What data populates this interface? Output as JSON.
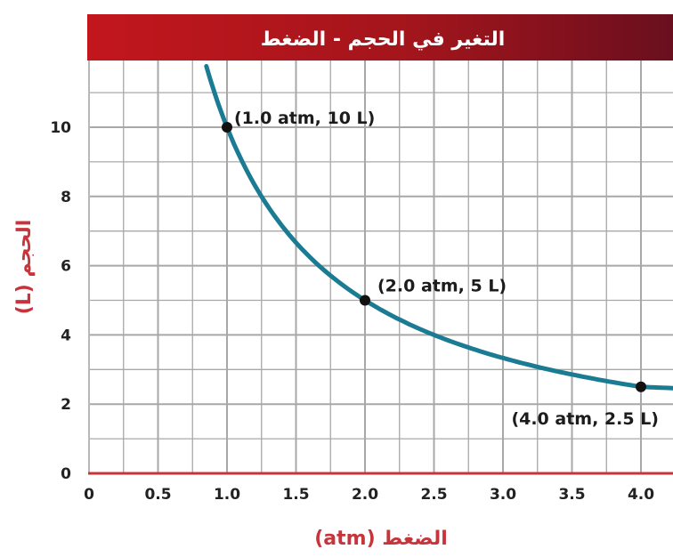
{
  "chart_data": {
    "type": "line",
    "title": "التغير في الحجم - الضغط",
    "xlabel": "الضغط (atm)",
    "ylabel": "الحجم (L)",
    "xlim": [
      0,
      4.3
    ],
    "ylim": [
      0,
      11.8
    ],
    "x_ticks": [
      0,
      0.5,
      1.0,
      1.5,
      2.0,
      2.5,
      3.0,
      3.5,
      4.0
    ],
    "x_tick_labels": [
      "0",
      "0.5",
      "1.0",
      "1.5",
      "2.0",
      "2.5",
      "3.0",
      "3.5",
      "4.0"
    ],
    "y_ticks": [
      0,
      2,
      4,
      6,
      8,
      10
    ],
    "y_tick_labels": [
      "0",
      "2",
      "4",
      "6",
      "8",
      "10"
    ],
    "grid": true,
    "series": [
      {
        "x": [
          0.85,
          1.0,
          1.25,
          1.5,
          1.75,
          2.0,
          2.5,
          3.0,
          3.5,
          4.0,
          4.3
        ],
        "y": [
          11.8,
          10,
          8,
          6.67,
          5.71,
          5,
          4,
          3.33,
          2.86,
          2.5,
          2.45
        ],
        "color": "#1b7b93"
      }
    ],
    "points": [
      {
        "x": 1.0,
        "y": 10,
        "label": "(1.0 atm, 10 L)"
      },
      {
        "x": 2.0,
        "y": 5,
        "label": "(2.0 atm, 5 L)"
      },
      {
        "x": 4.0,
        "y": 2.5,
        "label": "(4.0 atm, 2.5 L)"
      }
    ],
    "colors": {
      "title_band": "#a3151c",
      "axis_title": "#c8343b",
      "axis_line": "#c8343b",
      "grid": "#a8a8a8",
      "curve": "#1b7b93",
      "point": "#111111"
    }
  }
}
